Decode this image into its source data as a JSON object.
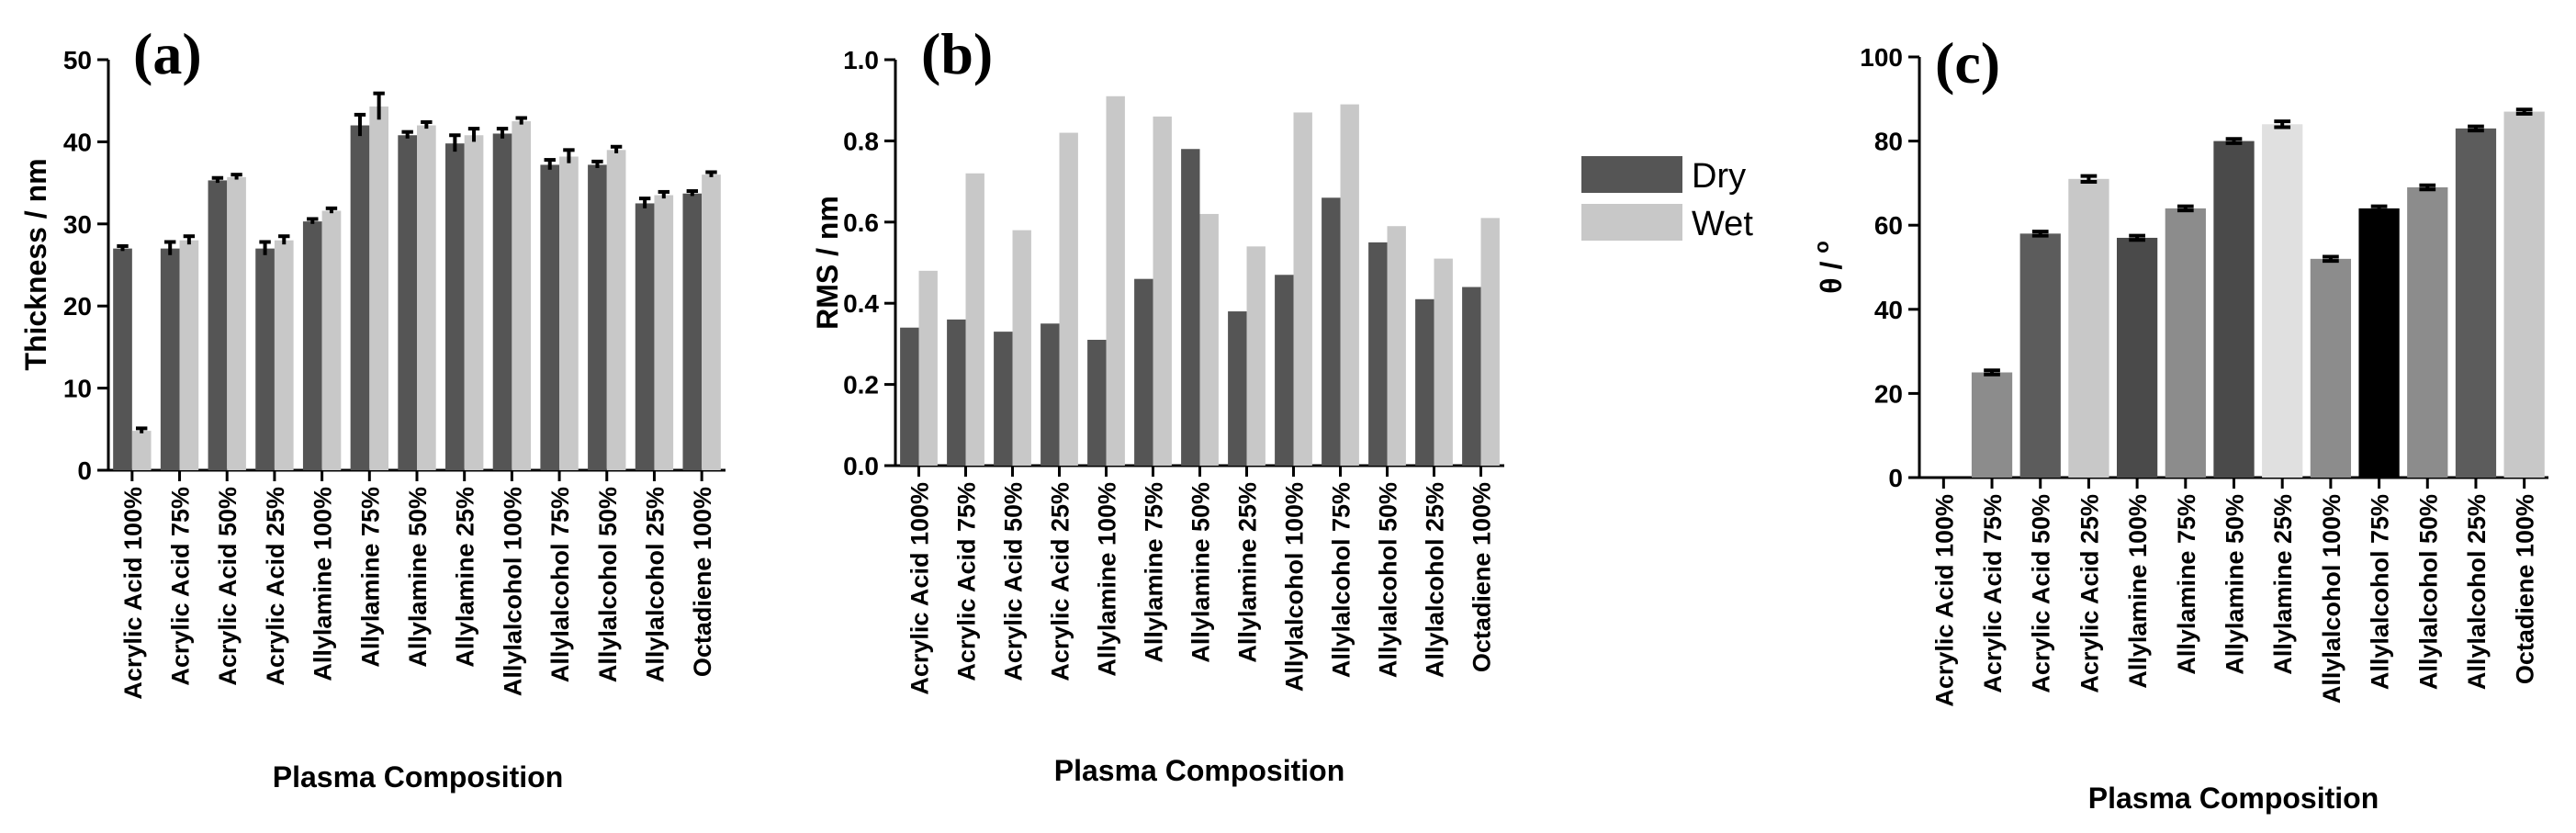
{
  "chart_data": [
    {
      "type": "bar",
      "panel_label": "(a)",
      "xlabel": "Plasma Composition",
      "ylabel": "Thickness / nm",
      "ylim": [
        0,
        50
      ],
      "yticks": [
        0,
        10,
        20,
        30,
        40,
        50
      ],
      "ytick_labels": [
        "0",
        "10",
        "20",
        "30",
        "40",
        "50"
      ],
      "categories": [
        "Acrylic Acid 100%",
        "Acrylic Acid 75%",
        "Acrylic Acid 50%",
        "Acrylic Acid 25%",
        "Allylamine 100%",
        "Allylamine 75%",
        "Allylamine 50%",
        "Allylamine 25%",
        "Allylalcohol 100%",
        "Allylalcohol 75%",
        "Allylalcohol 50%",
        "Allylalcohol 25%",
        "Octadiene 100%"
      ],
      "series": [
        {
          "name": "Dry",
          "color": "#555555",
          "values": [
            27,
            27,
            35.3,
            27,
            30.3,
            42,
            40.8,
            39.8,
            41,
            37.2,
            37.2,
            32.5,
            33.7
          ],
          "errors": [
            0.3,
            0.8,
            0.3,
            0.8,
            0.3,
            1.3,
            0.4,
            1.0,
            0.6,
            0.6,
            0.4,
            0.6,
            0.3
          ]
        },
        {
          "name": "Wet",
          "color": "#c8c8c8",
          "values": [
            4.8,
            28,
            35.7,
            28,
            31.6,
            44.3,
            42,
            40.8,
            42.5,
            38.2,
            39,
            33.5,
            36
          ],
          "errors": [
            0.3,
            0.5,
            0.3,
            0.5,
            0.3,
            1.6,
            0.4,
            0.8,
            0.4,
            0.8,
            0.4,
            0.4,
            0.3
          ]
        }
      ]
    },
    {
      "type": "bar",
      "panel_label": "(b)",
      "xlabel": "Plasma Composition",
      "ylabel": "RMS / nm",
      "ylim": [
        0,
        1.0
      ],
      "yticks": [
        0,
        0.2,
        0.4,
        0.6,
        0.8,
        1.0
      ],
      "ytick_labels": [
        "0.0",
        "0.2",
        "0.4",
        "0.6",
        "0.8",
        "1.0"
      ],
      "categories": [
        "Acrylic Acid 100%",
        "Acrylic Acid 75%",
        "Acrylic Acid 50%",
        "Acrylic Acid 25%",
        "Allylamine 100%",
        "Allylamine 75%",
        "Allylamine 50%",
        "Allylamine 25%",
        "Allylalcohol 100%",
        "Allylalcohol 75%",
        "Allylalcohol 50%",
        "Allylalcohol 25%",
        "Octadiene 100%"
      ],
      "series": [
        {
          "name": "Dry",
          "color": "#555555",
          "values": [
            0.34,
            0.36,
            0.33,
            0.35,
            0.31,
            0.46,
            0.78,
            0.38,
            0.47,
            0.66,
            0.55,
            0.41,
            0.44
          ]
        },
        {
          "name": "Wet",
          "color": "#c8c8c8",
          "values": [
            0.48,
            0.72,
            0.58,
            0.82,
            0.91,
            0.86,
            0.62,
            0.54,
            0.87,
            0.89,
            0.59,
            0.51,
            0.61
          ]
        }
      ]
    },
    {
      "type": "bar",
      "panel_label": "(c)",
      "xlabel": "Plasma Composition",
      "ylabel": "θ / °",
      "ylabel_theta": "θ / ",
      "ylabel_degree": "o",
      "ylim": [
        0,
        100
      ],
      "yticks": [
        0,
        20,
        40,
        60,
        80,
        100
      ],
      "ytick_labels": [
        "0",
        "20",
        "40",
        "60",
        "80",
        "100"
      ],
      "categories": [
        "Acrylic Acid 100%",
        "Acrylic Acid 75%",
        "Acrylic Acid 50%",
        "Acrylic Acid 25%",
        "Allylamine 100%",
        "Allylamine 75%",
        "Allylamine 50%",
        "Allylamine 25%",
        "Allylalcohol 100%",
        "Allylalcohol 75%",
        "Allylalcohol 50%",
        "Allylalcohol 25%",
        "Octadiene 100%"
      ],
      "values": [
        0,
        25,
        58,
        71,
        57,
        64,
        80,
        84,
        52,
        64,
        69,
        83,
        87
      ],
      "errors": [
        0,
        0.5,
        0.5,
        0.7,
        0.5,
        0.5,
        0.5,
        0.7,
        0.5,
        0.5,
        0.5,
        0.5,
        0.5
      ],
      "colors": [
        "#555555",
        "#8c8c8c",
        "#5c5c5c",
        "#c8c8c8",
        "#4a4a4a",
        "#8c8c8c",
        "#4a4a4a",
        "#e0e0e0",
        "#8c8c8c",
        "#000000",
        "#8c8c8c",
        "#5c5c5c",
        "#c8c8c8"
      ]
    }
  ],
  "legend": {
    "entries": [
      {
        "label": "Dry",
        "color": "#555555"
      },
      {
        "label": "Wet",
        "color": "#c8c8c8"
      }
    ]
  }
}
